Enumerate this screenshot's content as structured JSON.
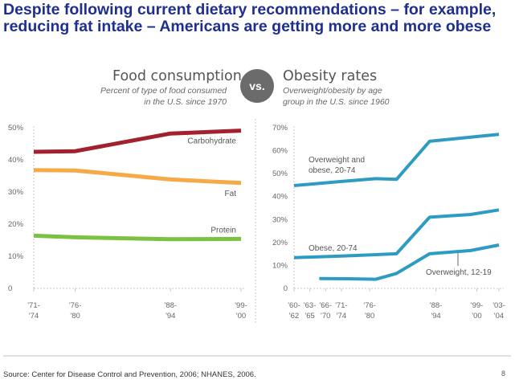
{
  "headline": {
    "line1": "Despite following current dietary recommendations – for example,",
    "line2": "reducing fat intake – Americans are getting more and more obese"
  },
  "vs_label": "vs.",
  "source": "Source:  Center for Disease Control and Prevention, 2006; NHANES, 2006.",
  "page_number": "8",
  "chart_data": [
    {
      "type": "line",
      "title": "Food consumption",
      "subtitle": [
        "Percent of type of food consumed",
        "in the U.S. since 1970"
      ],
      "x_categories": [
        [
          "'71-",
          "'74"
        ],
        [
          "'76-",
          "'80"
        ],
        [
          "'88-",
          "'94"
        ],
        [
          "'99-",
          "'00"
        ]
      ],
      "x_positions": [
        0,
        1,
        3.3,
        5
      ],
      "y_ticks": [
        "0",
        "10%",
        "20%",
        "30%",
        "40%",
        "50%"
      ],
      "ylim": [
        0,
        50
      ],
      "grid": false,
      "series": [
        {
          "name": "Carbohydrate",
          "color": "#a3202e",
          "values": [
            42.5,
            42.7,
            48.2,
            49.1
          ],
          "label_at": 3.2
        },
        {
          "name": "Fat",
          "color": "#f5a947",
          "values": [
            36.8,
            36.7,
            33.9,
            32.8
          ],
          "label_at": 4.7
        },
        {
          "name": "Protein",
          "color": "#7cc242",
          "values": [
            16.4,
            15.9,
            15.3,
            15.4
          ],
          "label_at": 4.7
        }
      ]
    },
    {
      "type": "line",
      "title": "Obesity rates",
      "subtitle": [
        "Overweight/obesity by age",
        "group in the U.S. since 1960"
      ],
      "x_categories": [
        [
          "'60-",
          "'62"
        ],
        [
          "'63-",
          "'65"
        ],
        [
          "'66-",
          "'70"
        ],
        [
          "'71-",
          "'74"
        ],
        [
          "'76-",
          "'80"
        ],
        [
          "'88-",
          "'94"
        ],
        [
          "'99-",
          "'00"
        ],
        [
          "'03-",
          "'04"
        ]
      ],
      "x_positions": [
        0,
        1,
        2,
        3,
        4.8,
        9,
        11.6,
        13
      ],
      "y_ticks": [
        "0",
        "10%",
        "20%",
        "30%",
        "40%",
        "50%",
        "60%",
        "70%"
      ],
      "ylim": [
        0,
        70
      ],
      "grid": false,
      "series": [
        {
          "name": "Overweight and obese, 20-74",
          "color": "#2e9cc2",
          "x": [
            0,
            3,
            5.2,
            6.5,
            8.6,
            11.2,
            13
          ],
          "values": [
            44.8,
            46.6,
            47.8,
            47.5,
            64.1,
            65.9,
            67.1
          ]
        },
        {
          "name": "Obese, 20-74",
          "color": "#2e9cc2",
          "x": [
            0,
            3,
            5.2,
            6.5,
            8.6,
            11.2,
            13
          ],
          "values": [
            13.4,
            14.1,
            14.7,
            15.1,
            31.0,
            32.2,
            34.2
          ]
        },
        {
          "name": "Overweight, 12-19",
          "color": "#2e9cc2",
          "x": [
            1.6,
            3.4,
            5.2,
            6.5,
            8.6,
            11.2,
            13
          ],
          "values": [
            4.3,
            4.2,
            4.0,
            6.5,
            15.1,
            16.5,
            18.9
          ]
        }
      ]
    }
  ]
}
